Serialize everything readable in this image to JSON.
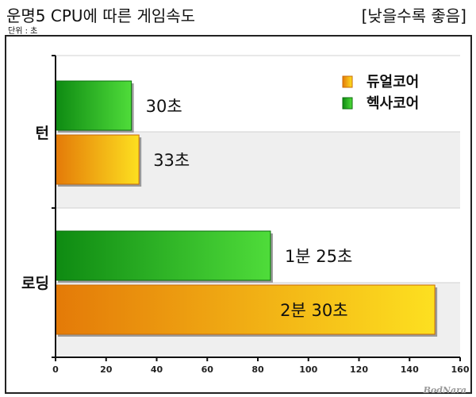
{
  "header": {
    "title": "운명5 CPU에 따른 게임속도",
    "unit": "단위 : 초",
    "note": "[낮을수록 좋음]"
  },
  "watermark": "BodNara",
  "chart_data": {
    "type": "bar",
    "orientation": "horizontal",
    "title": "운명5 CPU에 따른 게임속도",
    "unit_label": "단위 : 초",
    "categories": [
      "턴",
      "로딩"
    ],
    "series": [
      {
        "name": "헥사코어",
        "color": "#22b222",
        "values": [
          30,
          85
        ],
        "labels": [
          "30초",
          "1분 25초"
        ]
      },
      {
        "name": "듀얼코어",
        "color": "#f0a010",
        "values": [
          33,
          150
        ],
        "labels": [
          "33초",
          "2분 30초"
        ]
      }
    ],
    "xlim": [
      0,
      160
    ],
    "xticks": [
      0,
      20,
      40,
      60,
      80,
      100,
      120,
      140,
      160
    ],
    "legend": {
      "position": "top-right",
      "order": [
        "듀얼코어",
        "헥사코어"
      ]
    },
    "annotation": "[낮을수록 좋음]"
  }
}
